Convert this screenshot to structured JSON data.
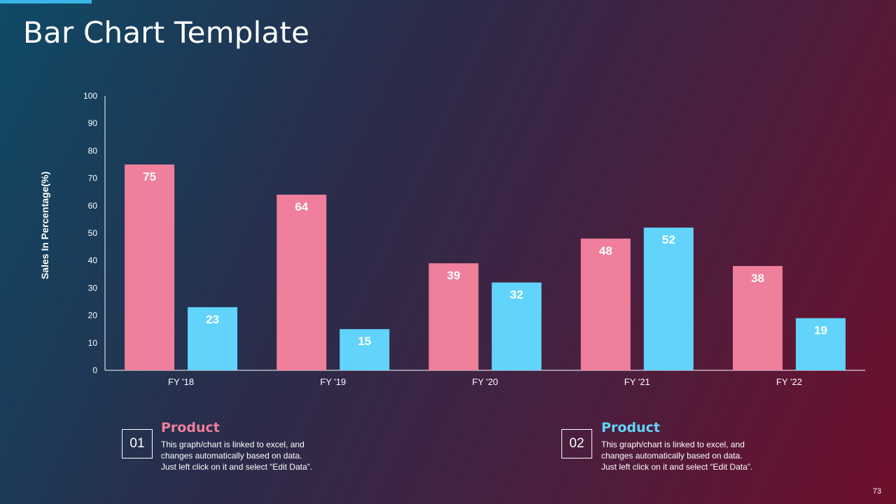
{
  "slide": {
    "title": "Bar Chart Template",
    "page_number": "73"
  },
  "colors": {
    "series1": "#ef7f9b",
    "series2": "#62d4fb",
    "accent": "#3ab3e6"
  },
  "legend": [
    {
      "number": "01",
      "heading": "Product",
      "color": "#ef7f9b",
      "lines": [
        "This graph/chart is linked to excel, and",
        "changes automatically based on data.",
        "Just left click on it and select “Edit Data”."
      ]
    },
    {
      "number": "02",
      "heading": "Product",
      "color": "#62d4fb",
      "lines": [
        "This graph/chart is linked to excel, and",
        "changes automatically based on data.",
        "Just left click on it and select “Edit Data”."
      ]
    }
  ],
  "chart_data": {
    "type": "bar",
    "title": "",
    "xlabel": "",
    "ylabel": "Sales In Percentage(%)",
    "ylim": [
      0,
      100
    ],
    "yticks": [
      0,
      10,
      20,
      30,
      40,
      50,
      60,
      70,
      80,
      90,
      100
    ],
    "categories": [
      "FY '18",
      "FY '19",
      "FY '20",
      "FY '21",
      "FY '22"
    ],
    "series": [
      {
        "name": "Product 01",
        "values": [
          75,
          64,
          39,
          48,
          38
        ]
      },
      {
        "name": "Product 02",
        "values": [
          23,
          15,
          32,
          52,
          19
        ]
      }
    ],
    "grid": false,
    "data_labels": true
  }
}
